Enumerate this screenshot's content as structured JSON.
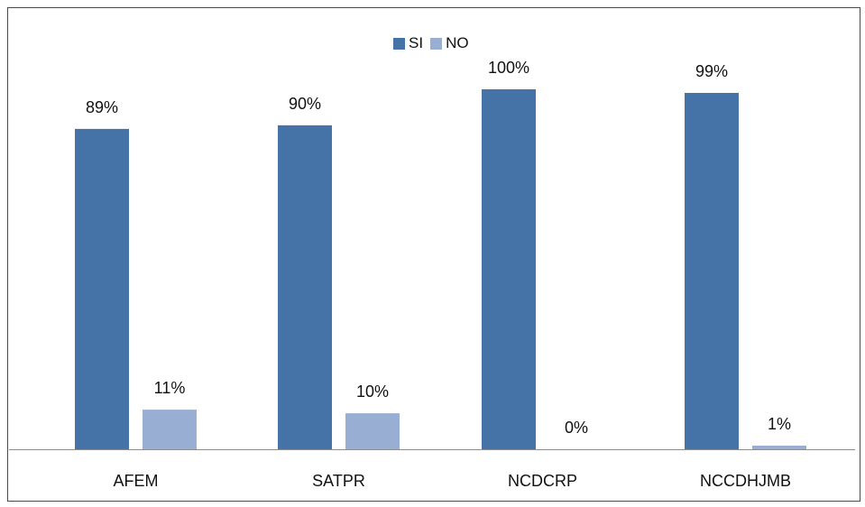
{
  "chart_data": {
    "type": "bar",
    "categories": [
      "AFEM",
      "SATPR",
      "NCDCRP",
      "NCCDHJMB"
    ],
    "series": [
      {
        "name": "SI",
        "values": [
          89,
          90,
          100,
          99
        ],
        "labels": [
          "89%",
          "90%",
          "100%",
          "99%"
        ],
        "color": "#4573a7"
      },
      {
        "name": "NO",
        "values": [
          11,
          10,
          0,
          1
        ],
        "labels": [
          "11%",
          "10%",
          "0%",
          "1%"
        ],
        "color": "#98aed2"
      }
    ],
    "legend_position": "top-center",
    "grid": false,
    "ylim": [
      0,
      100
    ]
  }
}
